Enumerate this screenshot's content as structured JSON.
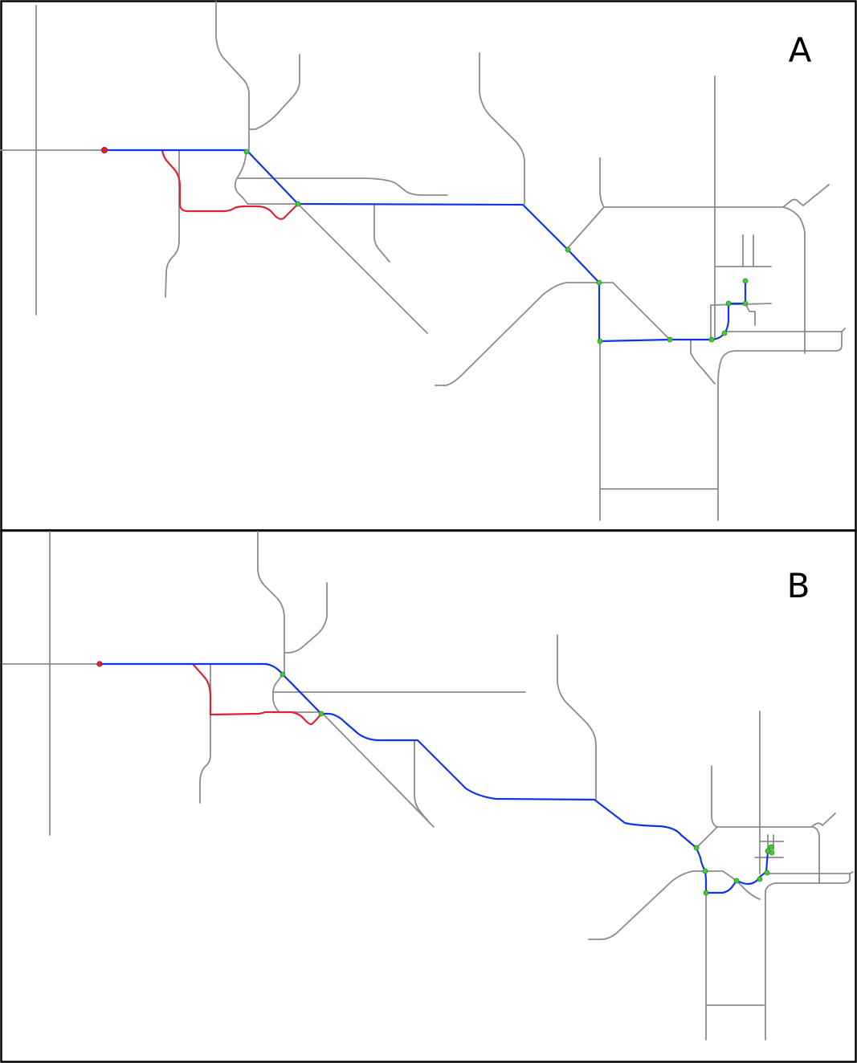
{
  "panels": [
    {
      "label": "A",
      "route_main_color": "#1133ee",
      "route_alt_color": "#dd2233",
      "stop_color": "#44cc33",
      "road_color": "#8c8c8c"
    },
    {
      "label": "B",
      "route_main_color": "#1133ee",
      "route_alt_color": "#dd2233",
      "stop_color": "#44cc33",
      "road_color": "#8c8c8c"
    }
  ]
}
